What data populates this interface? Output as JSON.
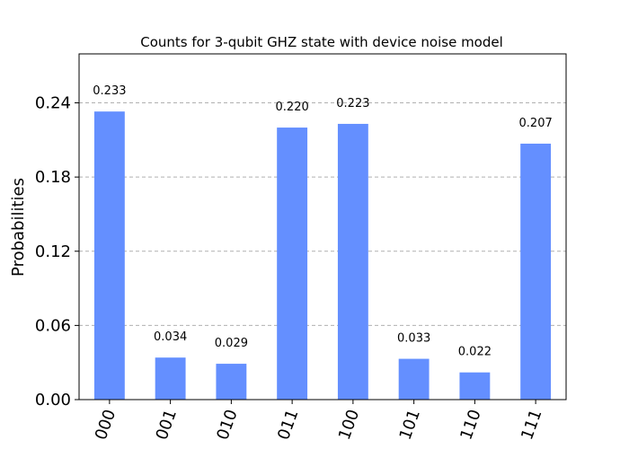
{
  "chart_data": {
    "type": "bar",
    "title": "Counts for 3-qubit GHZ state with device noise model",
    "xlabel": "",
    "ylabel": "Probabilities",
    "categories": [
      "000",
      "001",
      "010",
      "011",
      "100",
      "101",
      "110",
      "111"
    ],
    "values": [
      0.233,
      0.034,
      0.029,
      0.22,
      0.223,
      0.033,
      0.022,
      0.207
    ],
    "data_labels": [
      "0.233",
      "0.034",
      "0.029",
      "0.220",
      "0.223",
      "0.033",
      "0.022",
      "0.207"
    ],
    "yticks": [
      0.0,
      0.06,
      0.12,
      0.18,
      0.24
    ],
    "ytick_labels": [
      "0.00",
      "0.06",
      "0.12",
      "0.18",
      "0.24"
    ],
    "ylim": [
      0,
      0.2796
    ],
    "grid": "horizontal dashed",
    "bar_color": "#648fff",
    "grid_color": "#b0b0b0"
  }
}
